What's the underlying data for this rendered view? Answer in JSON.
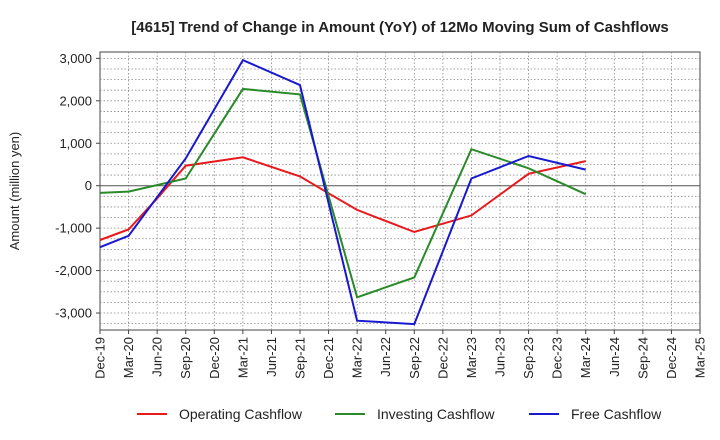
{
  "chart_data": {
    "type": "line",
    "title": "[4615]  Trend of Change in Amount (YoY) of 12Mo Moving Sum of Cashflows",
    "xlabel": "",
    "ylabel": "Amount (million yen)",
    "categories": [
      "Dec-19",
      "Mar-20",
      "Jun-20",
      "Sep-20",
      "Dec-20",
      "Mar-21",
      "Jun-21",
      "Sep-21",
      "Dec-21",
      "Mar-22",
      "Jun-22",
      "Sep-22",
      "Dec-22",
      "Mar-23",
      "Jun-23",
      "Sep-23",
      "Dec-23",
      "Mar-24",
      "Jun-24",
      "Sep-24",
      "Dec-24",
      "Mar-25"
    ],
    "ylim": [
      -3400,
      3150
    ],
    "yticks": [
      3000,
      2000,
      1000,
      0,
      -1000,
      -2000,
      -3000
    ],
    "ytick_labels": [
      "3,000",
      "2,000",
      "1,000",
      "0",
      "-1,000",
      "-2,000",
      "-3,000"
    ],
    "grid": true,
    "legend_position": "bottom",
    "series": [
      {
        "name": "Operating Cashflow",
        "color": "#e8191c",
        "values": [
          -1280,
          -1030,
          -300,
          470,
          null,
          670,
          null,
          220,
          -180,
          -570,
          null,
          -1090,
          null,
          -700,
          null,
          280,
          null,
          580,
          null,
          null,
          null,
          null
        ]
      },
      {
        "name": "Investing Cashflow",
        "color": "#2a8a2a",
        "values": [
          -170,
          -140,
          null,
          170,
          null,
          2280,
          null,
          2150,
          null,
          -2630,
          null,
          -2160,
          null,
          860,
          null,
          410,
          null,
          -200,
          null,
          null,
          null,
          null
        ]
      },
      {
        "name": "Free Cashflow",
        "color": "#1818d0",
        "values": [
          -1450,
          -1180,
          null,
          640,
          null,
          2960,
          null,
          2370,
          null,
          -3180,
          null,
          -3260,
          null,
          170,
          null,
          700,
          null,
          380,
          null,
          null,
          null,
          null
        ]
      }
    ]
  }
}
